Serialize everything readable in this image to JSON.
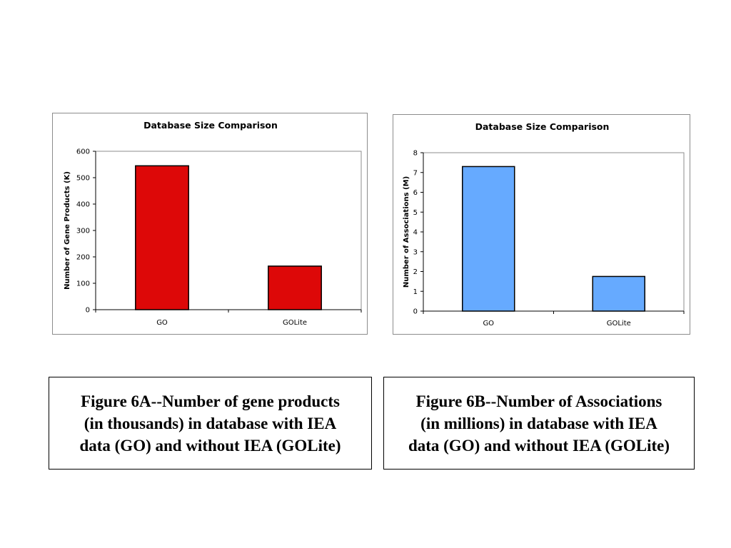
{
  "chart_data": [
    {
      "id": "chartA",
      "type": "bar",
      "title": "Database Size Comparison",
      "xlabel": "",
      "ylabel": "Number of Gene Products (K)",
      "categories": [
        "GO",
        "GOLite"
      ],
      "values": [
        545,
        165
      ],
      "ylim": [
        0,
        600
      ],
      "yticks": [
        0,
        100,
        200,
        300,
        400,
        500,
        600
      ],
      "bar_color": "#dd0808",
      "grid": false,
      "legend": "none"
    },
    {
      "id": "chartB",
      "type": "bar",
      "title": "Database Size Comparison",
      "xlabel": "",
      "ylabel": "Number of Associations (M)",
      "categories": [
        "GO",
        "GOLite"
      ],
      "values": [
        7.3,
        1.75
      ],
      "ylim": [
        0,
        8
      ],
      "yticks": [
        0,
        1,
        2,
        3,
        4,
        5,
        6,
        7,
        8
      ],
      "bar_color": "#66aaff",
      "grid": false,
      "legend": "none"
    }
  ],
  "captions": {
    "a": {
      "line1": "Figure 6A--Number of gene products",
      "line2": "(in thousands) in database with IEA",
      "line3": "data (GO) and without IEA (GOLite)"
    },
    "b": {
      "line1": "Figure 6B--Number of Associations",
      "line2": "(in millions) in database with IEA",
      "line3": "data (GO) and without IEA (GOLite)"
    }
  }
}
